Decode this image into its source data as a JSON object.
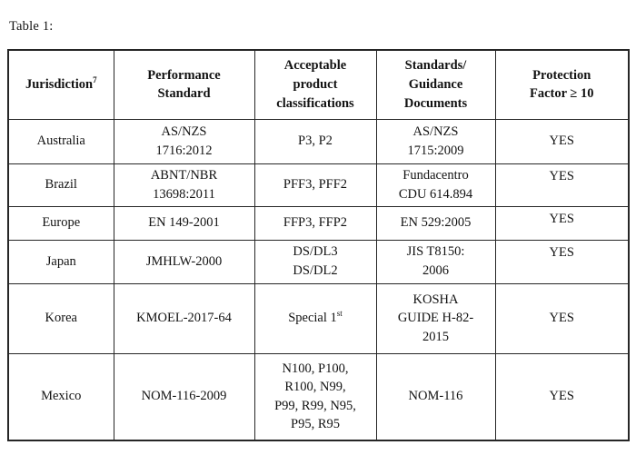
{
  "page": {
    "label": "Table 1:"
  },
  "table": {
    "headers": [
      {
        "label": "Jurisdiction",
        "sup": "7"
      },
      {
        "label": "Performance\nStandard"
      },
      {
        "label": "Acceptable\nproduct\nclassifications"
      },
      {
        "label": "Standards/\nGuidance\nDocuments"
      },
      {
        "label": "Protection\nFactor ≥ 10"
      }
    ],
    "rows": [
      {
        "cells": [
          {
            "text": "Australia"
          },
          {
            "text": "AS/NZS\n1716:2012"
          },
          {
            "text": "P3, P2"
          },
          {
            "text": "AS/NZS\n1715:2009"
          },
          {
            "text": "YES"
          }
        ]
      },
      {
        "cells": [
          {
            "text": "Brazil"
          },
          {
            "text": "ABNT/NBR\n13698:2011"
          },
          {
            "text": "PFF3, PFF2"
          },
          {
            "text": "Fundacentro\nCDU 614.894"
          },
          {
            "text": "YES",
            "align": "top"
          }
        ]
      },
      {
        "cells": [
          {
            "text": "Europe"
          },
          {
            "text": "EN 149-2001"
          },
          {
            "text": "FFP3, FFP2"
          },
          {
            "text": "EN 529:2005"
          },
          {
            "text": "YES",
            "align": "top"
          }
        ]
      },
      {
        "cells": [
          {
            "text": "Japan"
          },
          {
            "text": "JMHLW-2000"
          },
          {
            "text": "DS/DL3\nDS/DL2"
          },
          {
            "text": "JIS T8150:\n2006"
          },
          {
            "text": "YES",
            "align": "top"
          }
        ]
      },
      {
        "cells": [
          {
            "text": "Korea"
          },
          {
            "text": "KMOEL-2017-64"
          },
          {
            "text": "Special 1",
            "sup": "st"
          },
          {
            "text": "KOSHA\nGUIDE H-82-\n2015"
          },
          {
            "text": "YES"
          }
        ]
      },
      {
        "cells": [
          {
            "text": "Mexico"
          },
          {
            "text": "NOM-116-2009"
          },
          {
            "text": "N100, P100,\nR100, N99,\nP99, R99, N95,\nP95, R95"
          },
          {
            "text": "NOM-116"
          },
          {
            "text": "YES"
          }
        ]
      }
    ]
  },
  "colors": {
    "text": "#121212",
    "border": "#262626",
    "background": "#ffffff"
  }
}
